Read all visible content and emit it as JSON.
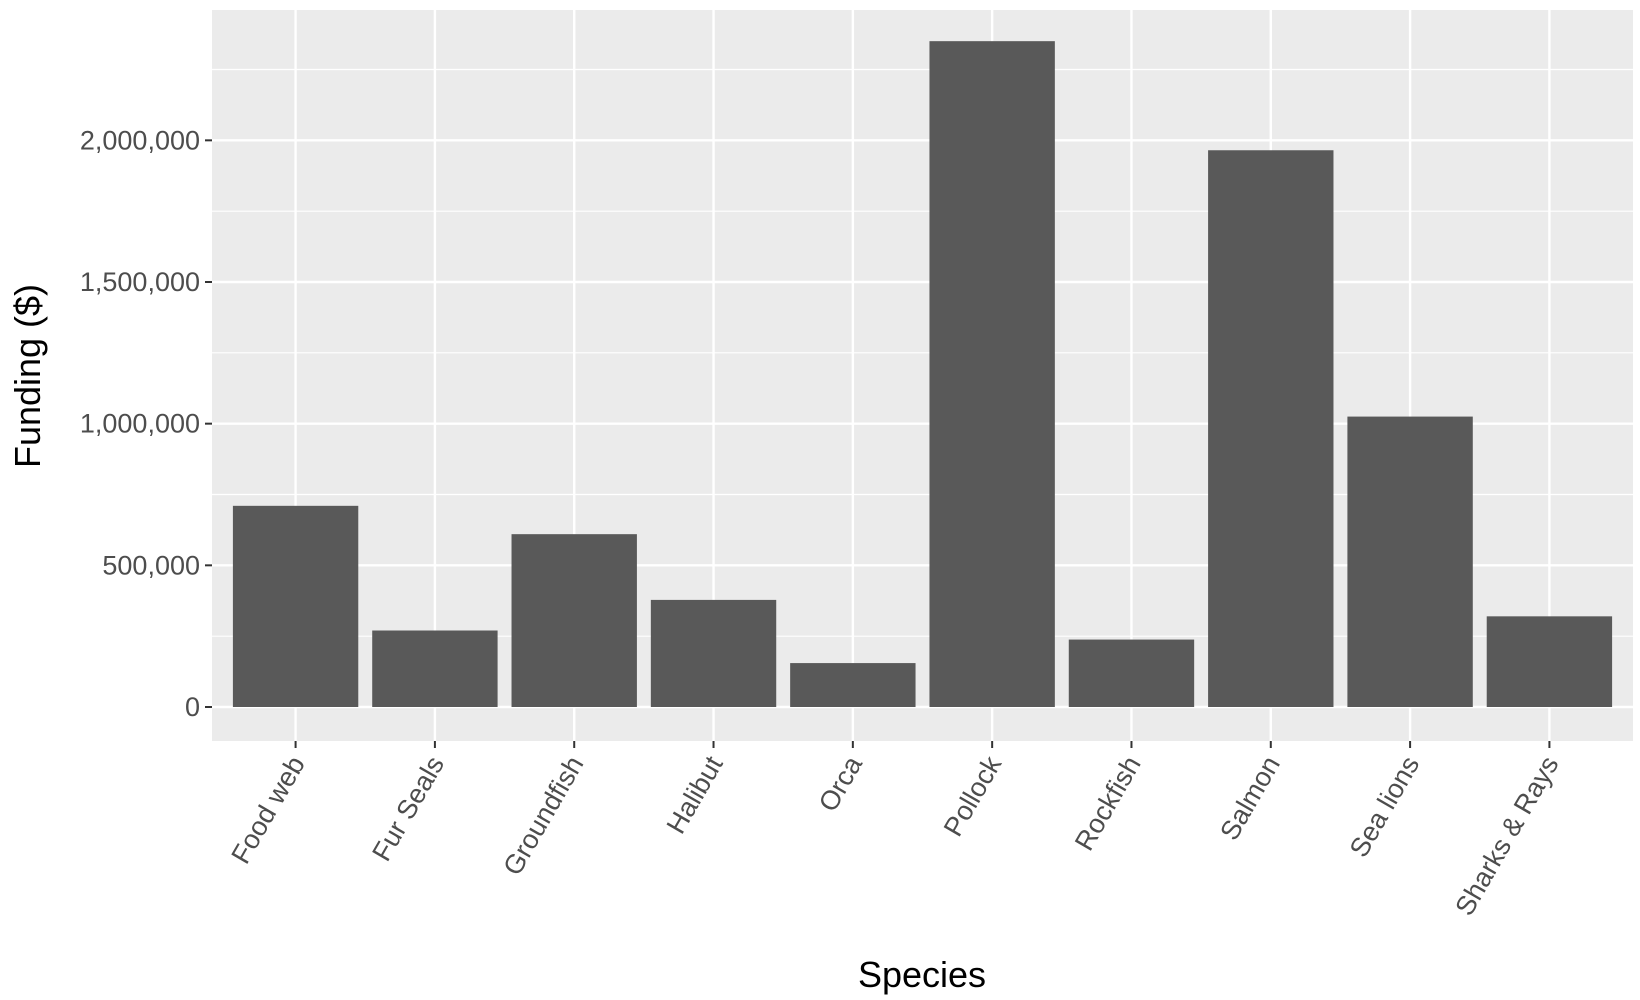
{
  "chart_data": {
    "type": "bar",
    "title": "",
    "xlabel": "Species",
    "ylabel": "Funding ($)",
    "categories": [
      "Food web",
      "Fur Seals",
      "Groundfish",
      "Halibut",
      "Orca",
      "Pollock",
      "Rockfish",
      "Salmon",
      "Sea lions",
      "Sharks & Rays"
    ],
    "values": [
      710000,
      270000,
      610000,
      378000,
      155000,
      2350000,
      238000,
      1965000,
      1025000,
      320000
    ],
    "ylim": [
      -120000,
      2460000
    ],
    "yticks": [
      0,
      500000,
      1000000,
      1500000,
      2000000
    ],
    "ytick_labels": [
      "0",
      "500,000",
      "1,000,000",
      "1,500,000",
      "2,000,000"
    ],
    "grid": true,
    "colors": {
      "bar": "#595959",
      "panel": "#ebebeb",
      "grid": "#ffffff",
      "tick": "#333333"
    }
  }
}
